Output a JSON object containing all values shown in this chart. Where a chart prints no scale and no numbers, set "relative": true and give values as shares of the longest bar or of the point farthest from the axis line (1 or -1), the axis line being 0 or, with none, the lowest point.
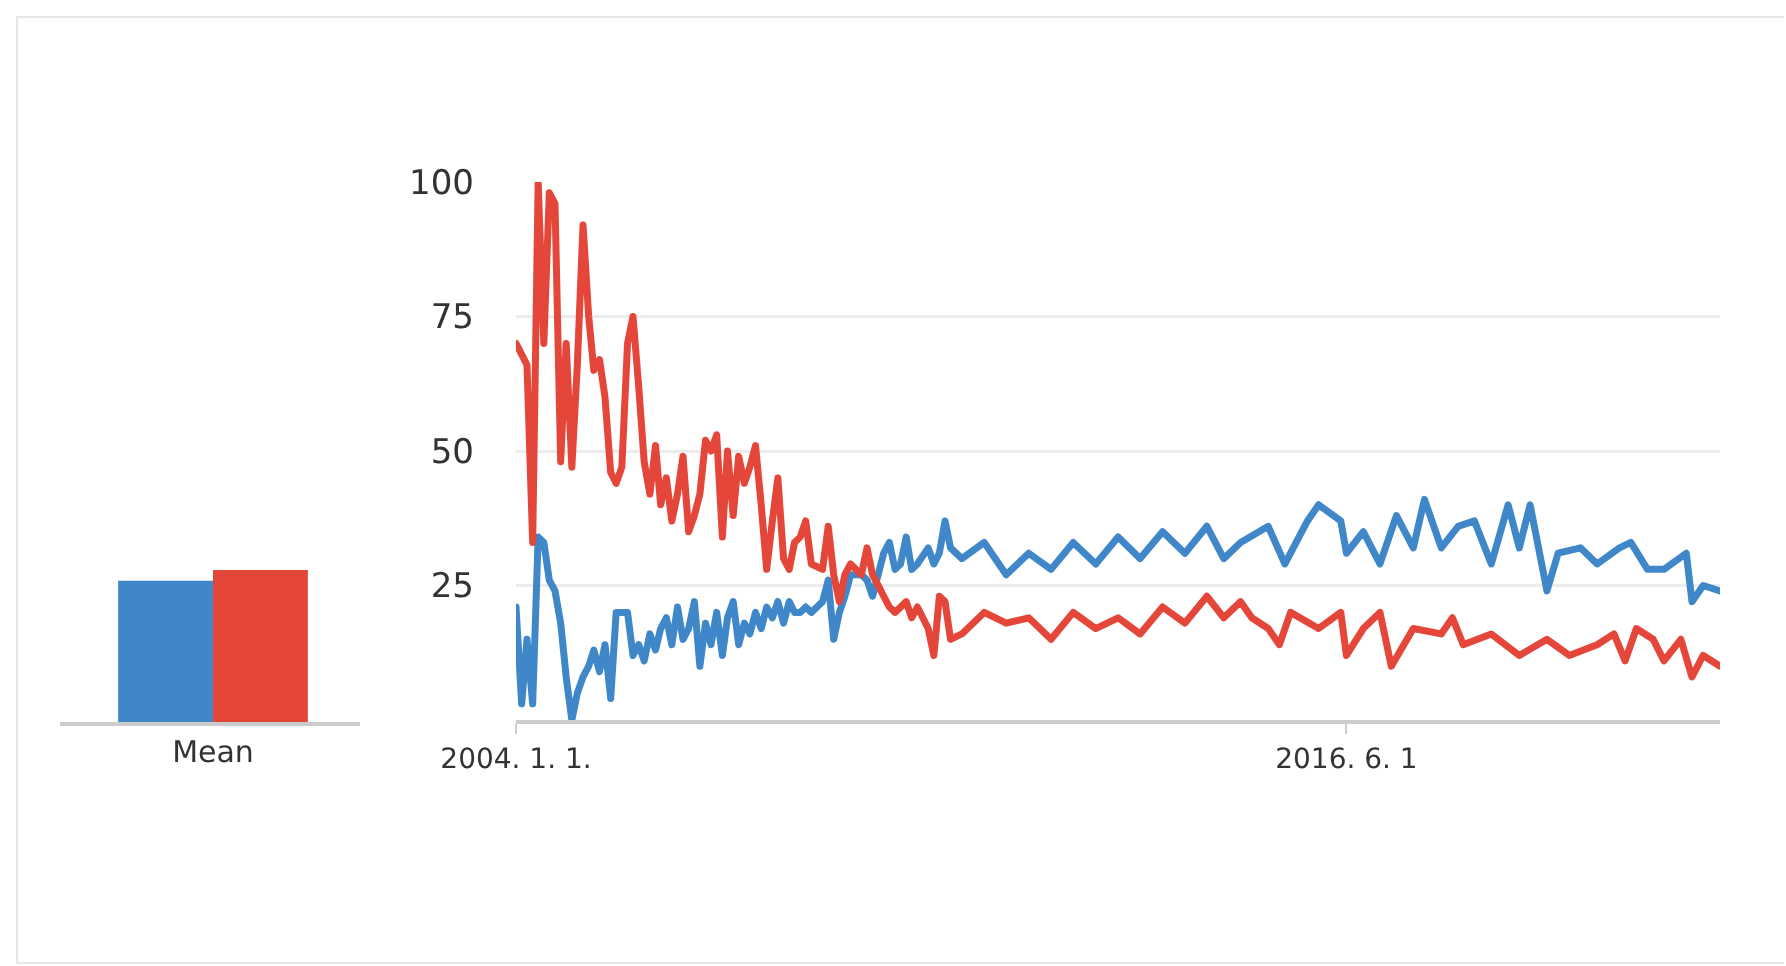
{
  "chart_data": [
    {
      "type": "bar",
      "categories": [
        "Mean"
      ],
      "relative": true,
      "series": [
        {
          "color": "#3f87c9",
          "values": [
            0.93
          ]
        },
        {
          "color": "#e4463a",
          "values": [
            1
          ]
        }
      ]
    },
    {
      "type": "line",
      "xlim": [
        "2004-01-01",
        "2022-01-01"
      ],
      "xticks": [
        {
          "value": "2004-01-01",
          "label": "2004. 1. 1."
        },
        {
          "value": "2016-06-01",
          "label": "2016. 6. 1"
        }
      ],
      "ylim": [
        0,
        100
      ],
      "yticks": [
        25,
        50,
        75,
        100
      ],
      "grid": "y",
      "series": [
        {
          "color": "#3f87c9",
          "x": [
            "2004-01",
            "2004-02",
            "2004-03",
            "2004-04",
            "2004-05",
            "2004-06",
            "2004-07",
            "2004-08",
            "2004-09",
            "2004-10",
            "2004-11",
            "2004-12",
            "2005-01",
            "2005-02",
            "2005-03",
            "2005-04",
            "2005-05",
            "2005-06",
            "2005-07",
            "2005-08",
            "2005-09",
            "2005-10",
            "2005-11",
            "2005-12",
            "2006-01",
            "2006-02",
            "2006-03",
            "2006-04",
            "2006-05",
            "2006-06",
            "2006-07",
            "2006-08",
            "2006-09",
            "2006-10",
            "2006-11",
            "2006-12",
            "2007-01",
            "2007-02",
            "2007-03",
            "2007-04",
            "2007-05",
            "2007-06",
            "2007-07",
            "2007-08",
            "2007-09",
            "2007-10",
            "2007-11",
            "2007-12",
            "2008-01",
            "2008-02",
            "2008-03",
            "2008-04",
            "2008-05",
            "2008-06",
            "2008-08",
            "2008-09",
            "2008-10",
            "2008-11",
            "2008-12",
            "2009-01",
            "2009-03",
            "2009-04",
            "2009-05",
            "2009-07",
            "2009-08",
            "2009-09",
            "2009-10",
            "2009-11",
            "2009-12",
            "2010-01",
            "2010-03",
            "2010-04",
            "2010-05",
            "2010-06",
            "2010-07",
            "2010-09",
            "2011-01",
            "2011-05",
            "2011-09",
            "2012-01",
            "2012-05",
            "2012-09",
            "2013-01",
            "2013-05",
            "2013-09",
            "2014-01",
            "2014-05",
            "2014-08",
            "2014-11",
            "2015-04",
            "2015-07",
            "2015-11",
            "2016-01",
            "2016-05",
            "2016-06",
            "2016-09",
            "2016-12",
            "2017-03",
            "2017-06",
            "2017-08",
            "2017-11",
            "2018-02",
            "2018-05",
            "2018-08",
            "2018-11",
            "2019-01",
            "2019-03",
            "2019-06",
            "2019-08",
            "2019-12",
            "2020-03",
            "2020-07",
            "2020-09",
            "2020-12",
            "2021-03",
            "2021-07",
            "2021-08",
            "2021-10",
            "2022-01"
          ],
          "values": [
            21,
            3,
            15,
            3,
            34,
            33,
            26,
            24,
            18,
            8,
            0,
            5,
            8,
            10,
            13,
            9,
            14,
            4,
            20,
            20,
            20,
            12,
            14,
            11,
            16,
            13,
            17,
            19,
            14,
            21,
            15,
            17,
            22,
            10,
            18,
            14,
            20,
            12,
            19,
            22,
            14,
            18,
            16,
            20,
            17,
            21,
            19,
            22,
            18,
            22,
            20,
            20,
            21,
            20,
            22,
            26,
            15,
            20,
            23,
            27,
            27,
            26,
            23,
            31,
            33,
            28,
            29,
            34,
            28,
            29,
            32,
            29,
            31,
            37,
            32,
            30,
            33,
            27,
            31,
            28,
            33,
            29,
            34,
            30,
            35,
            31,
            36,
            30,
            33,
            36,
            29,
            37,
            40,
            37,
            31,
            35,
            29,
            38,
            32,
            41,
            32,
            36,
            37,
            29,
            40,
            32,
            40,
            24,
            31,
            32,
            29,
            32,
            33,
            28,
            28,
            31,
            22,
            25,
            24
          ]
        },
        {
          "color": "#e4463a",
          "x": [
            "2004-01",
            "2004-03",
            "2004-04",
            "2004-05",
            "2004-06",
            "2004-07",
            "2004-08",
            "2004-09",
            "2004-10",
            "2004-11",
            "2004-12",
            "2005-01",
            "2005-02",
            "2005-03",
            "2005-04",
            "2005-05",
            "2005-06",
            "2005-07",
            "2005-08",
            "2005-09",
            "2005-10",
            "2005-11",
            "2005-12",
            "2006-01",
            "2006-02",
            "2006-03",
            "2006-04",
            "2006-05",
            "2006-06",
            "2006-07",
            "2006-08",
            "2006-09",
            "2006-10",
            "2006-11",
            "2006-12",
            "2007-01",
            "2007-02",
            "2007-03",
            "2007-04",
            "2007-05",
            "2007-06",
            "2007-07",
            "2007-08",
            "2007-09",
            "2007-10",
            "2007-11",
            "2007-12",
            "2008-01",
            "2008-02",
            "2008-03",
            "2008-04",
            "2008-05",
            "2008-06",
            "2008-08",
            "2008-09",
            "2008-10",
            "2008-11",
            "2008-12",
            "2009-01",
            "2009-03",
            "2009-04",
            "2009-05",
            "2009-06",
            "2009-07",
            "2009-08",
            "2009-09",
            "2009-11",
            "2009-12",
            "2010-01",
            "2010-03",
            "2010-04",
            "2010-05",
            "2010-06",
            "2010-07",
            "2010-09",
            "2011-01",
            "2011-05",
            "2011-09",
            "2012-01",
            "2012-05",
            "2012-09",
            "2013-01",
            "2013-05",
            "2013-09",
            "2014-01",
            "2014-05",
            "2014-08",
            "2014-11",
            "2015-01",
            "2015-04",
            "2015-06",
            "2015-08",
            "2016-01",
            "2016-05",
            "2016-06",
            "2016-09",
            "2016-12",
            "2017-02",
            "2017-06",
            "2017-11",
            "2018-01",
            "2018-03",
            "2018-08",
            "2019-01",
            "2019-06",
            "2019-10",
            "2020-03",
            "2020-06",
            "2020-08",
            "2020-10",
            "2021-01",
            "2021-03",
            "2021-06",
            "2021-08",
            "2021-10",
            "2022-01"
          ],
          "values": [
            70,
            66,
            33,
            100,
            70,
            98,
            96,
            48,
            70,
            47,
            66,
            92,
            75,
            65,
            67,
            60,
            46,
            44,
            47,
            70,
            75,
            62,
            48,
            42,
            51,
            40,
            45,
            37,
            42,
            49,
            35,
            38,
            42,
            52,
            50,
            53,
            34,
            50,
            38,
            49,
            44,
            47,
            51,
            40,
            28,
            37,
            45,
            30,
            28,
            33,
            34,
            37,
            29,
            28,
            36,
            27,
            22,
            27,
            29,
            27,
            32,
            27,
            25,
            23,
            21,
            20,
            22,
            19,
            21,
            17,
            12,
            23,
            22,
            15,
            16,
            20,
            18,
            19,
            15,
            20,
            17,
            19,
            16,
            21,
            18,
            23,
            19,
            22,
            19,
            17,
            14,
            20,
            17,
            20,
            12,
            17,
            20,
            10,
            17,
            16,
            19,
            14,
            16,
            12,
            15,
            12,
            14,
            16,
            11,
            17,
            15,
            11,
            15,
            8,
            12,
            10
          ]
        }
      ]
    }
  ]
}
